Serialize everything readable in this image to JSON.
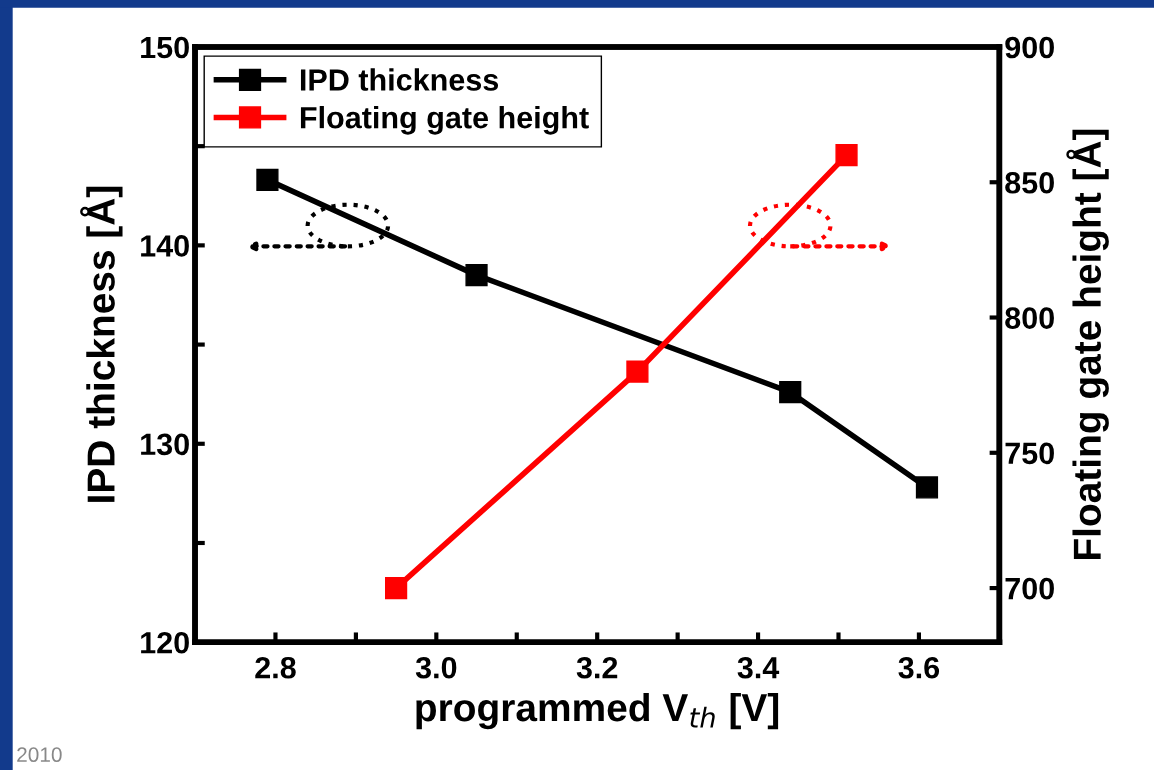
{
  "chart_data": {
    "type": "line",
    "xlabel": "programmed V$_{th}$ [V]",
    "ylabel": "IPD thickness [Å]",
    "y2label": "Floating gate height [Å]",
    "series": [
      {
        "name": "IPD thickness",
        "color": "#000000",
        "x": [
          2.79,
          3.05,
          3.44,
          3.61
        ],
        "values": [
          143.3,
          138.5,
          132.6,
          127.8
        ]
      },
      {
        "name": "Floating gate height",
        "color": "#ff0000",
        "axis": "y2",
        "x": [
          2.95,
          3.25,
          3.51
        ],
        "values": [
          700,
          780,
          860
        ]
      }
    ],
    "xlim": [
      2.7,
      3.7
    ],
    "xticks": [
      {
        "value": 2.8,
        "label": "2.8"
      },
      {
        "value": 2.9,
        "label": null
      },
      {
        "value": 3.0,
        "label": "3.0"
      },
      {
        "value": 3.1,
        "label": null
      },
      {
        "value": 3.2,
        "label": "3.2"
      },
      {
        "value": 3.3,
        "label": null
      },
      {
        "value": 3.4,
        "label": "3.4"
      },
      {
        "value": 3.5,
        "label": null
      },
      {
        "value": 3.6,
        "label": "3.6"
      }
    ],
    "ylim": [
      120,
      150
    ],
    "yticks": [
      120,
      {
        "value": 125,
        "label": null
      },
      130,
      {
        "value": 135,
        "label": null
      },
      140,
      {
        "value": 145,
        "label": null
      },
      150
    ],
    "y2lim": [
      680,
      900
    ],
    "y2ticks": [
      700,
      750,
      800,
      850,
      900
    ],
    "marker": "square",
    "line_style": "solid",
    "legend": "top left",
    "grid": false,
    "annotations": [
      "2010"
    ]
  }
}
